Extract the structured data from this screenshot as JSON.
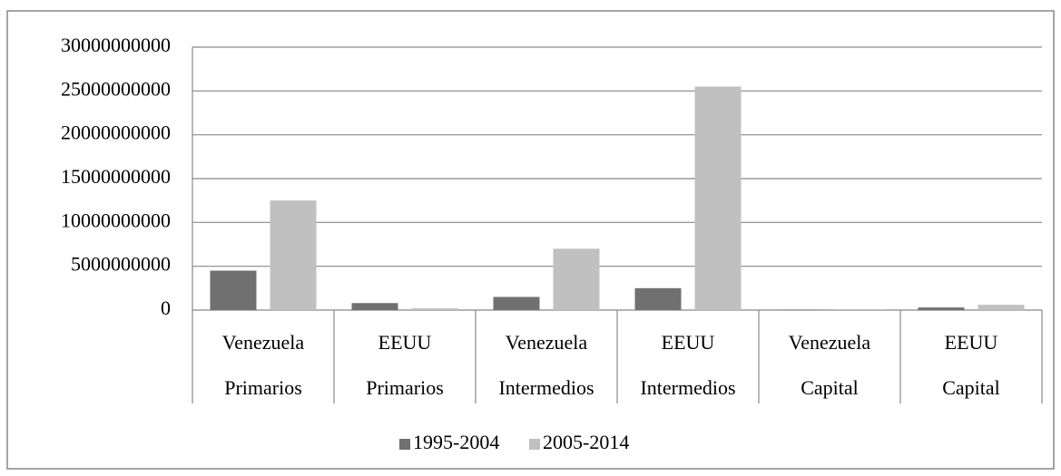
{
  "chart_data": {
    "type": "bar",
    "categories": [
      [
        "Venezuela",
        "Primarios"
      ],
      [
        "EEUU",
        "Primarios"
      ],
      [
        "Venezuela",
        "Intermedios"
      ],
      [
        "EEUU",
        "Intermedios"
      ],
      [
        "Venezuela",
        "Capital"
      ],
      [
        "EEUU",
        "Capital"
      ]
    ],
    "series": [
      {
        "name": "1995-2004",
        "color": "#707070",
        "values": [
          4500000000,
          800000000,
          1500000000,
          2500000000,
          50000000,
          300000000
        ]
      },
      {
        "name": "2005-2014",
        "color": "#c0c0c0",
        "values": [
          12500000000,
          200000000,
          7000000000,
          25500000000,
          20000000,
          600000000
        ]
      }
    ],
    "ylim": [
      0,
      30000000000
    ],
    "yticks": [
      0,
      5000000000,
      10000000000,
      15000000000,
      20000000000,
      25000000000,
      30000000000
    ],
    "grid": true,
    "legend": "bottom"
  }
}
